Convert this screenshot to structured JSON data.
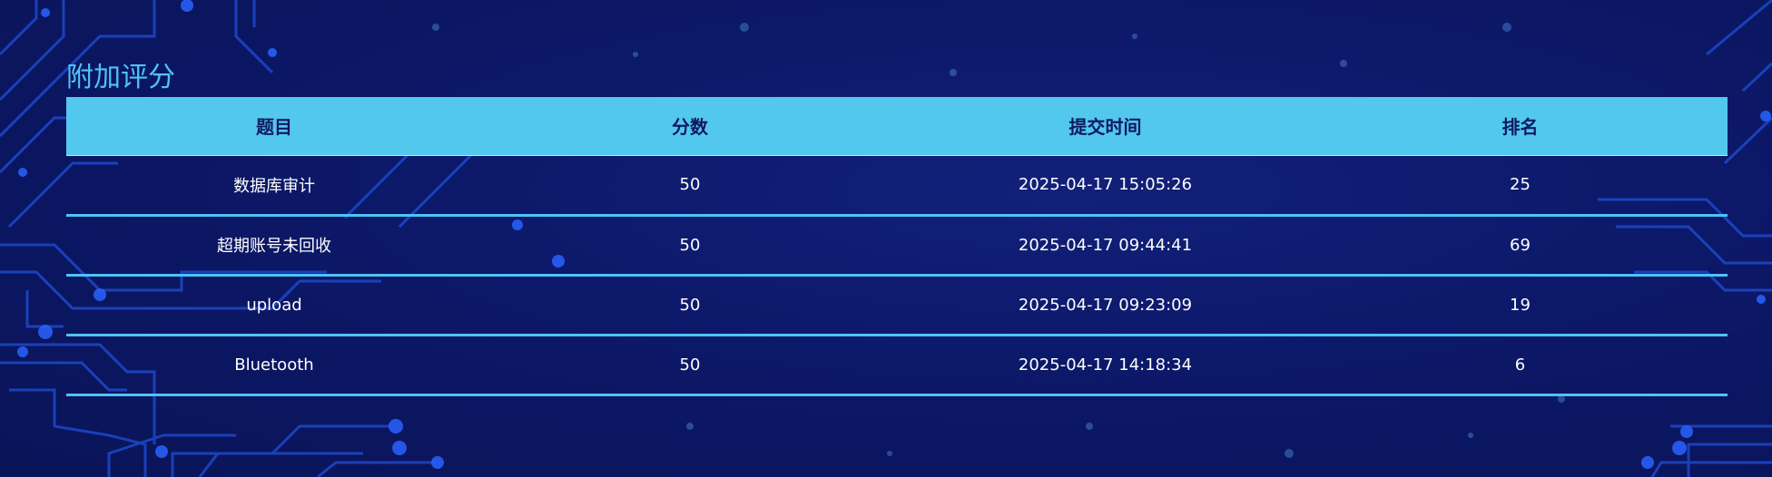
{
  "section": {
    "title": "附加评分"
  },
  "table": {
    "headers": [
      "题目",
      "分数",
      "提交时间",
      "排名"
    ],
    "rows": [
      {
        "title": "数据库审计",
        "score": "50",
        "time": "2025-04-17 15:05:26",
        "rank": "25"
      },
      {
        "title": "超期账号未回收",
        "score": "50",
        "time": "2025-04-17 09:44:41",
        "rank": "69"
      },
      {
        "title": "upload",
        "score": "50",
        "time": "2025-04-17 09:23:09",
        "rank": "19"
      },
      {
        "title": "Bluetooth",
        "score": "50",
        "time": "2025-04-17 14:18:34",
        "rank": "6"
      }
    ]
  },
  "colors": {
    "background": "#0c1868",
    "accent": "#4fc3f7",
    "header_bg": "#53c8ef",
    "header_text": "#0e1a5e",
    "circuit": "#1f4fd8"
  },
  "background_decoration": "circuit-board-pattern"
}
